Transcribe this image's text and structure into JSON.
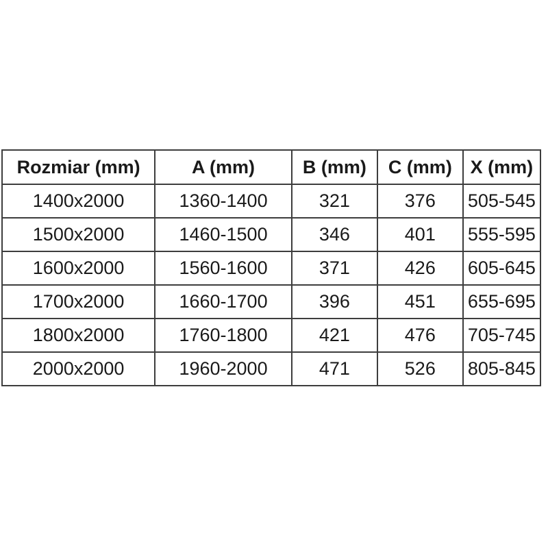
{
  "table": {
    "columns": [
      "Rozmiar (mm)",
      "A (mm)",
      "B (mm)",
      "C (mm)",
      "X (mm)"
    ],
    "rows": [
      [
        "1400x2000",
        "1360-1400",
        "321",
        "376",
        "505-545"
      ],
      [
        "1500x2000",
        "1460-1500",
        "346",
        "401",
        "555-595"
      ],
      [
        "1600x2000",
        "1560-1600",
        "371",
        "426",
        "605-645"
      ],
      [
        "1700x2000",
        "1660-1700",
        "396",
        "451",
        "655-695"
      ],
      [
        "1800x2000",
        "1760-1800",
        "421",
        "476",
        "705-745"
      ],
      [
        "2000x2000",
        "1960-2000",
        "471",
        "526",
        "805-845"
      ]
    ],
    "colors": {
      "border": "#3d3d3d",
      "text": "#1a1a1a",
      "background": "#ffffff"
    }
  }
}
